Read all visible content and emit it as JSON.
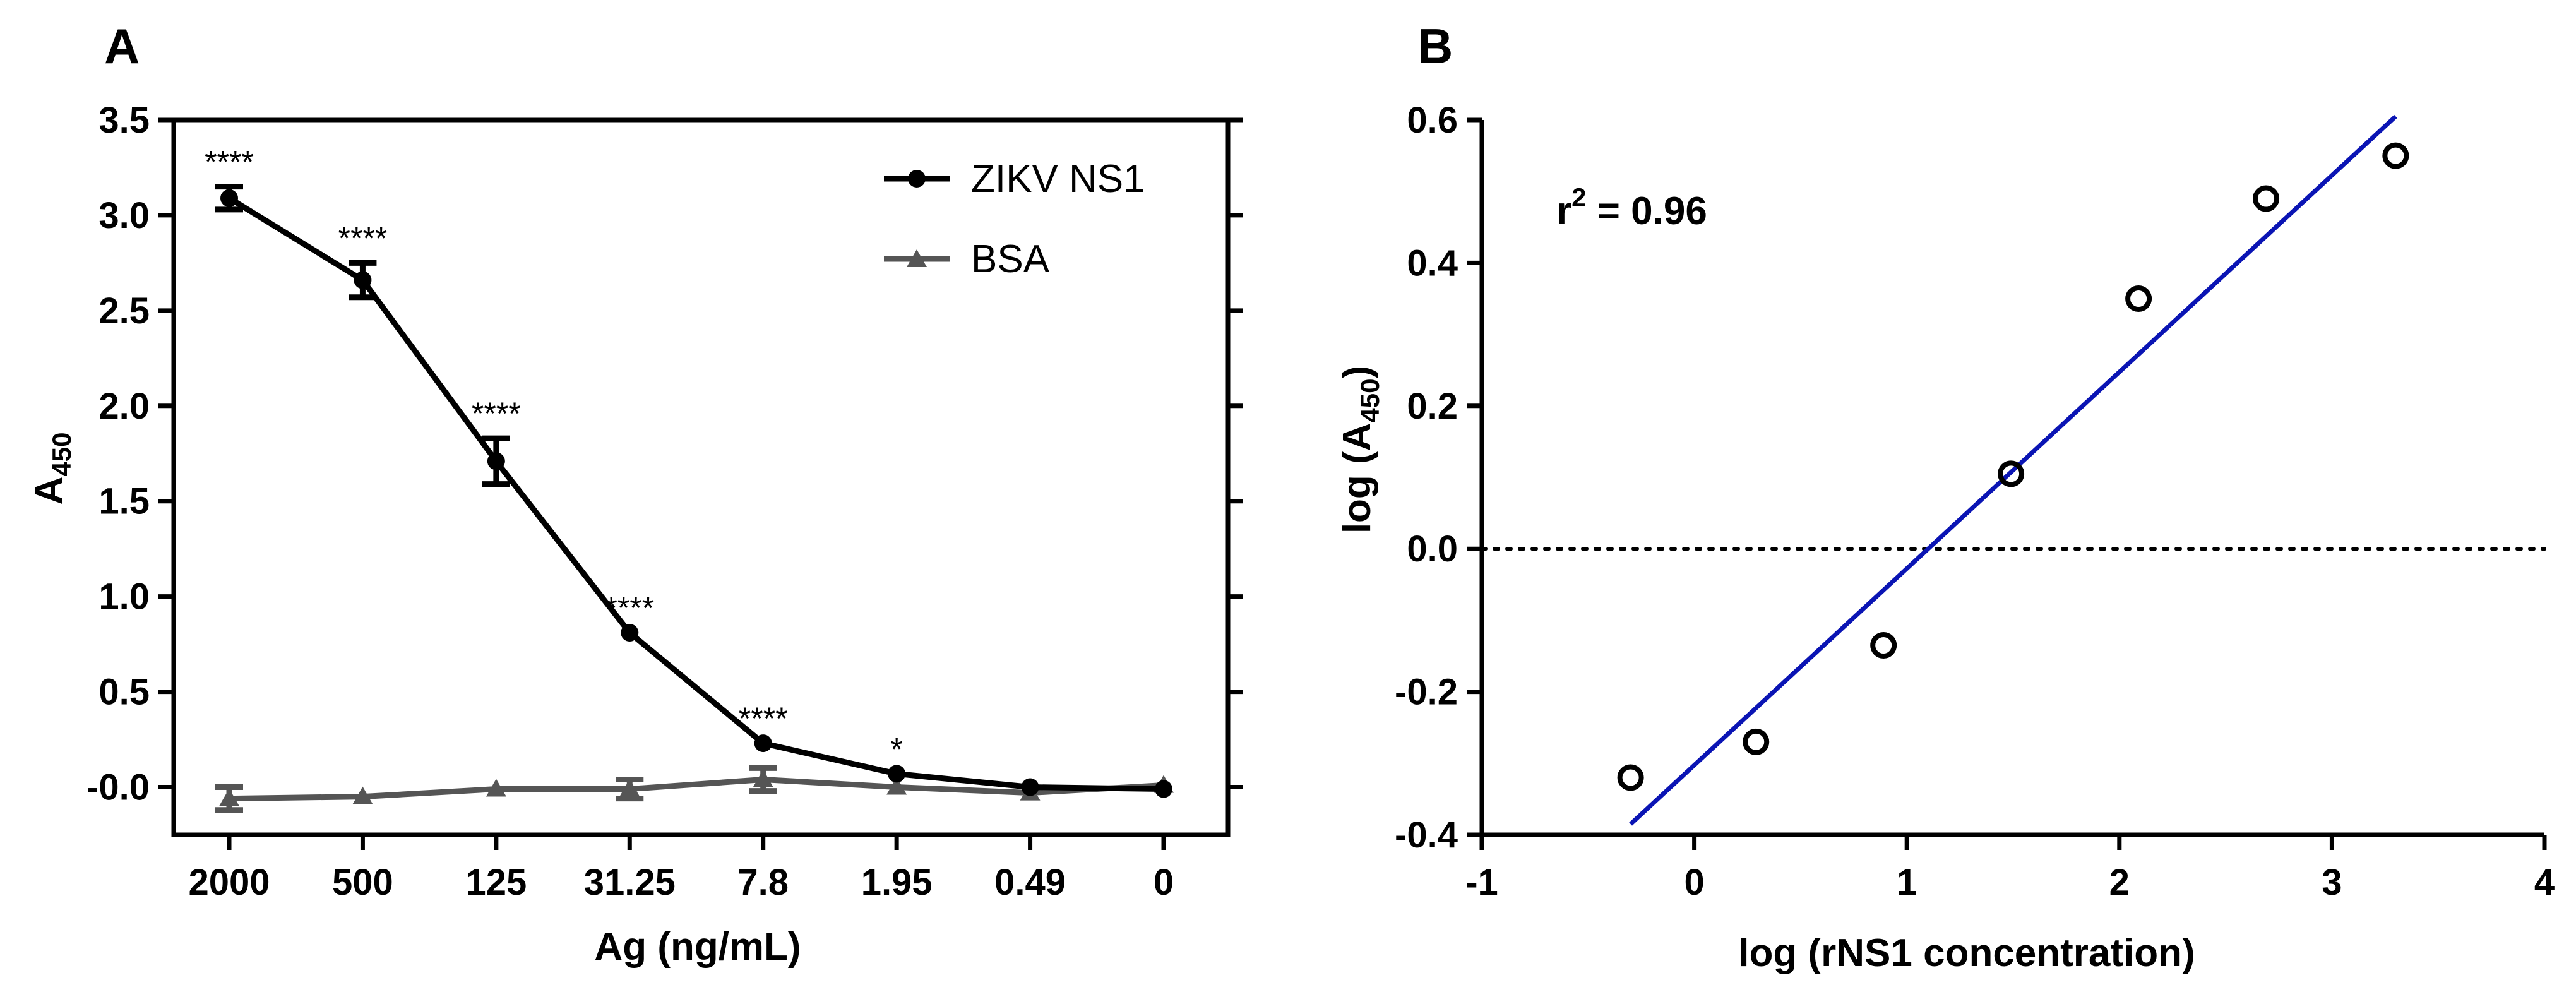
{
  "chart_data": [
    {
      "panel": "A",
      "type": "line",
      "xlabel": "Ag (ng/mL)",
      "ylabel_main": "A",
      "ylabel_sub": "450",
      "categories": [
        "2000",
        "500",
        "125",
        "31.25",
        "7.8",
        "1.95",
        "0.49",
        "0"
      ],
      "ylim": [
        -0.25,
        3.5
      ],
      "yticks": [
        "-0.0",
        "0.5",
        "1.0",
        "1.5",
        "2.0",
        "2.5",
        "3.0",
        "3.5"
      ],
      "ytick_values": [
        0,
        0.5,
        1.0,
        1.5,
        2.0,
        2.5,
        3.0,
        3.5
      ],
      "legend_position": "top-right",
      "series": [
        {
          "name": "ZIKV NS1",
          "color": "#000000",
          "marker": "circle",
          "values": [
            3.09,
            2.66,
            1.71,
            0.81,
            0.23,
            0.07,
            0.0,
            -0.01
          ],
          "errors": [
            0.06,
            0.09,
            0.12,
            0.0,
            0.0,
            0.0,
            0.0,
            0.0
          ]
        },
        {
          "name": "BSA",
          "color": "#555555",
          "marker": "triangle",
          "values": [
            -0.06,
            -0.05,
            -0.01,
            -0.01,
            0.04,
            0.0,
            -0.03,
            0.01
          ],
          "errors": [
            0.06,
            0.0,
            0.0,
            0.05,
            0.06,
            0.0,
            0.0,
            0.0
          ]
        }
      ],
      "significance": [
        "****",
        "****",
        "****",
        "****",
        "****",
        "*",
        "",
        ""
      ],
      "grid": false
    },
    {
      "panel": "B",
      "type": "scatter",
      "xlabel": "log (rNS1 concentration)",
      "ylabel_main": "log (A",
      "ylabel_sub": "450",
      "ylabel_end": ")",
      "xlim": [
        -1,
        4
      ],
      "ylim": [
        -0.4,
        0.6
      ],
      "xticks": [
        "-1",
        "0",
        "1",
        "2",
        "3",
        "4"
      ],
      "xtick_values": [
        -1,
        0,
        1,
        2,
        3,
        4
      ],
      "yticks": [
        "-0.4",
        "-0.2",
        "0.0",
        "0.2",
        "0.4",
        "0.6"
      ],
      "ytick_values": [
        -0.4,
        -0.2,
        0.0,
        0.2,
        0.4,
        0.6
      ],
      "points": {
        "x": [
          -0.3,
          0.29,
          0.89,
          1.49,
          2.09,
          2.69,
          3.3
        ],
        "y": [
          -0.32,
          -0.27,
          -0.135,
          0.105,
          0.35,
          0.49,
          0.55
        ]
      },
      "fit_line": {
        "x": [
          -0.3,
          3.3
        ],
        "y": [
          -0.385,
          0.605
        ],
        "color": "#0a14b4"
      },
      "zero_line": {
        "y": 0,
        "style": "dotted"
      },
      "annotation": {
        "text_main": "r",
        "text_sup": "2",
        "text_end": " = 0.96"
      },
      "grid": false
    }
  ]
}
